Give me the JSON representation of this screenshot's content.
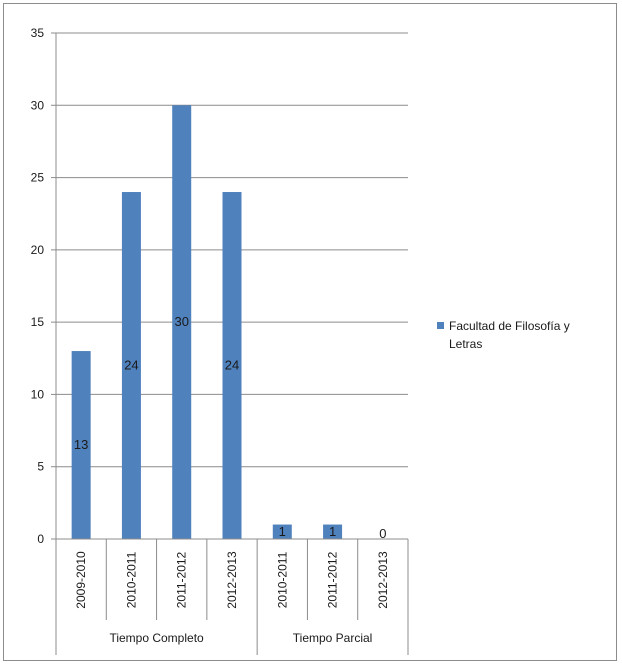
{
  "chart_data": {
    "type": "bar",
    "categories": [
      "2009-2010",
      "2010-2011",
      "2011-2012",
      "2012-2013",
      "2010-2011",
      "2011-2012",
      "2012-2013"
    ],
    "groups": [
      {
        "label": "Tiempo Completo",
        "span": 4
      },
      {
        "label": "Tiempo Parcial",
        "span": 3
      }
    ],
    "series": [
      {
        "name": "Facultad de Filosofía y Letras",
        "color": "#4f81bd",
        "values": [
          13,
          24,
          30,
          24,
          1,
          1,
          0
        ]
      }
    ],
    "data_labels": [
      "13",
      "24",
      "30",
      "24",
      "1",
      "1",
      "0"
    ],
    "y_ticks": [
      "0",
      "5",
      "10",
      "15",
      "20",
      "25",
      "30",
      "35"
    ],
    "ylim": [
      0,
      35
    ],
    "grid": true,
    "legend_position": "right",
    "legend": {
      "line1": "Facultad de Filosofía y",
      "line2": "Letras"
    }
  }
}
